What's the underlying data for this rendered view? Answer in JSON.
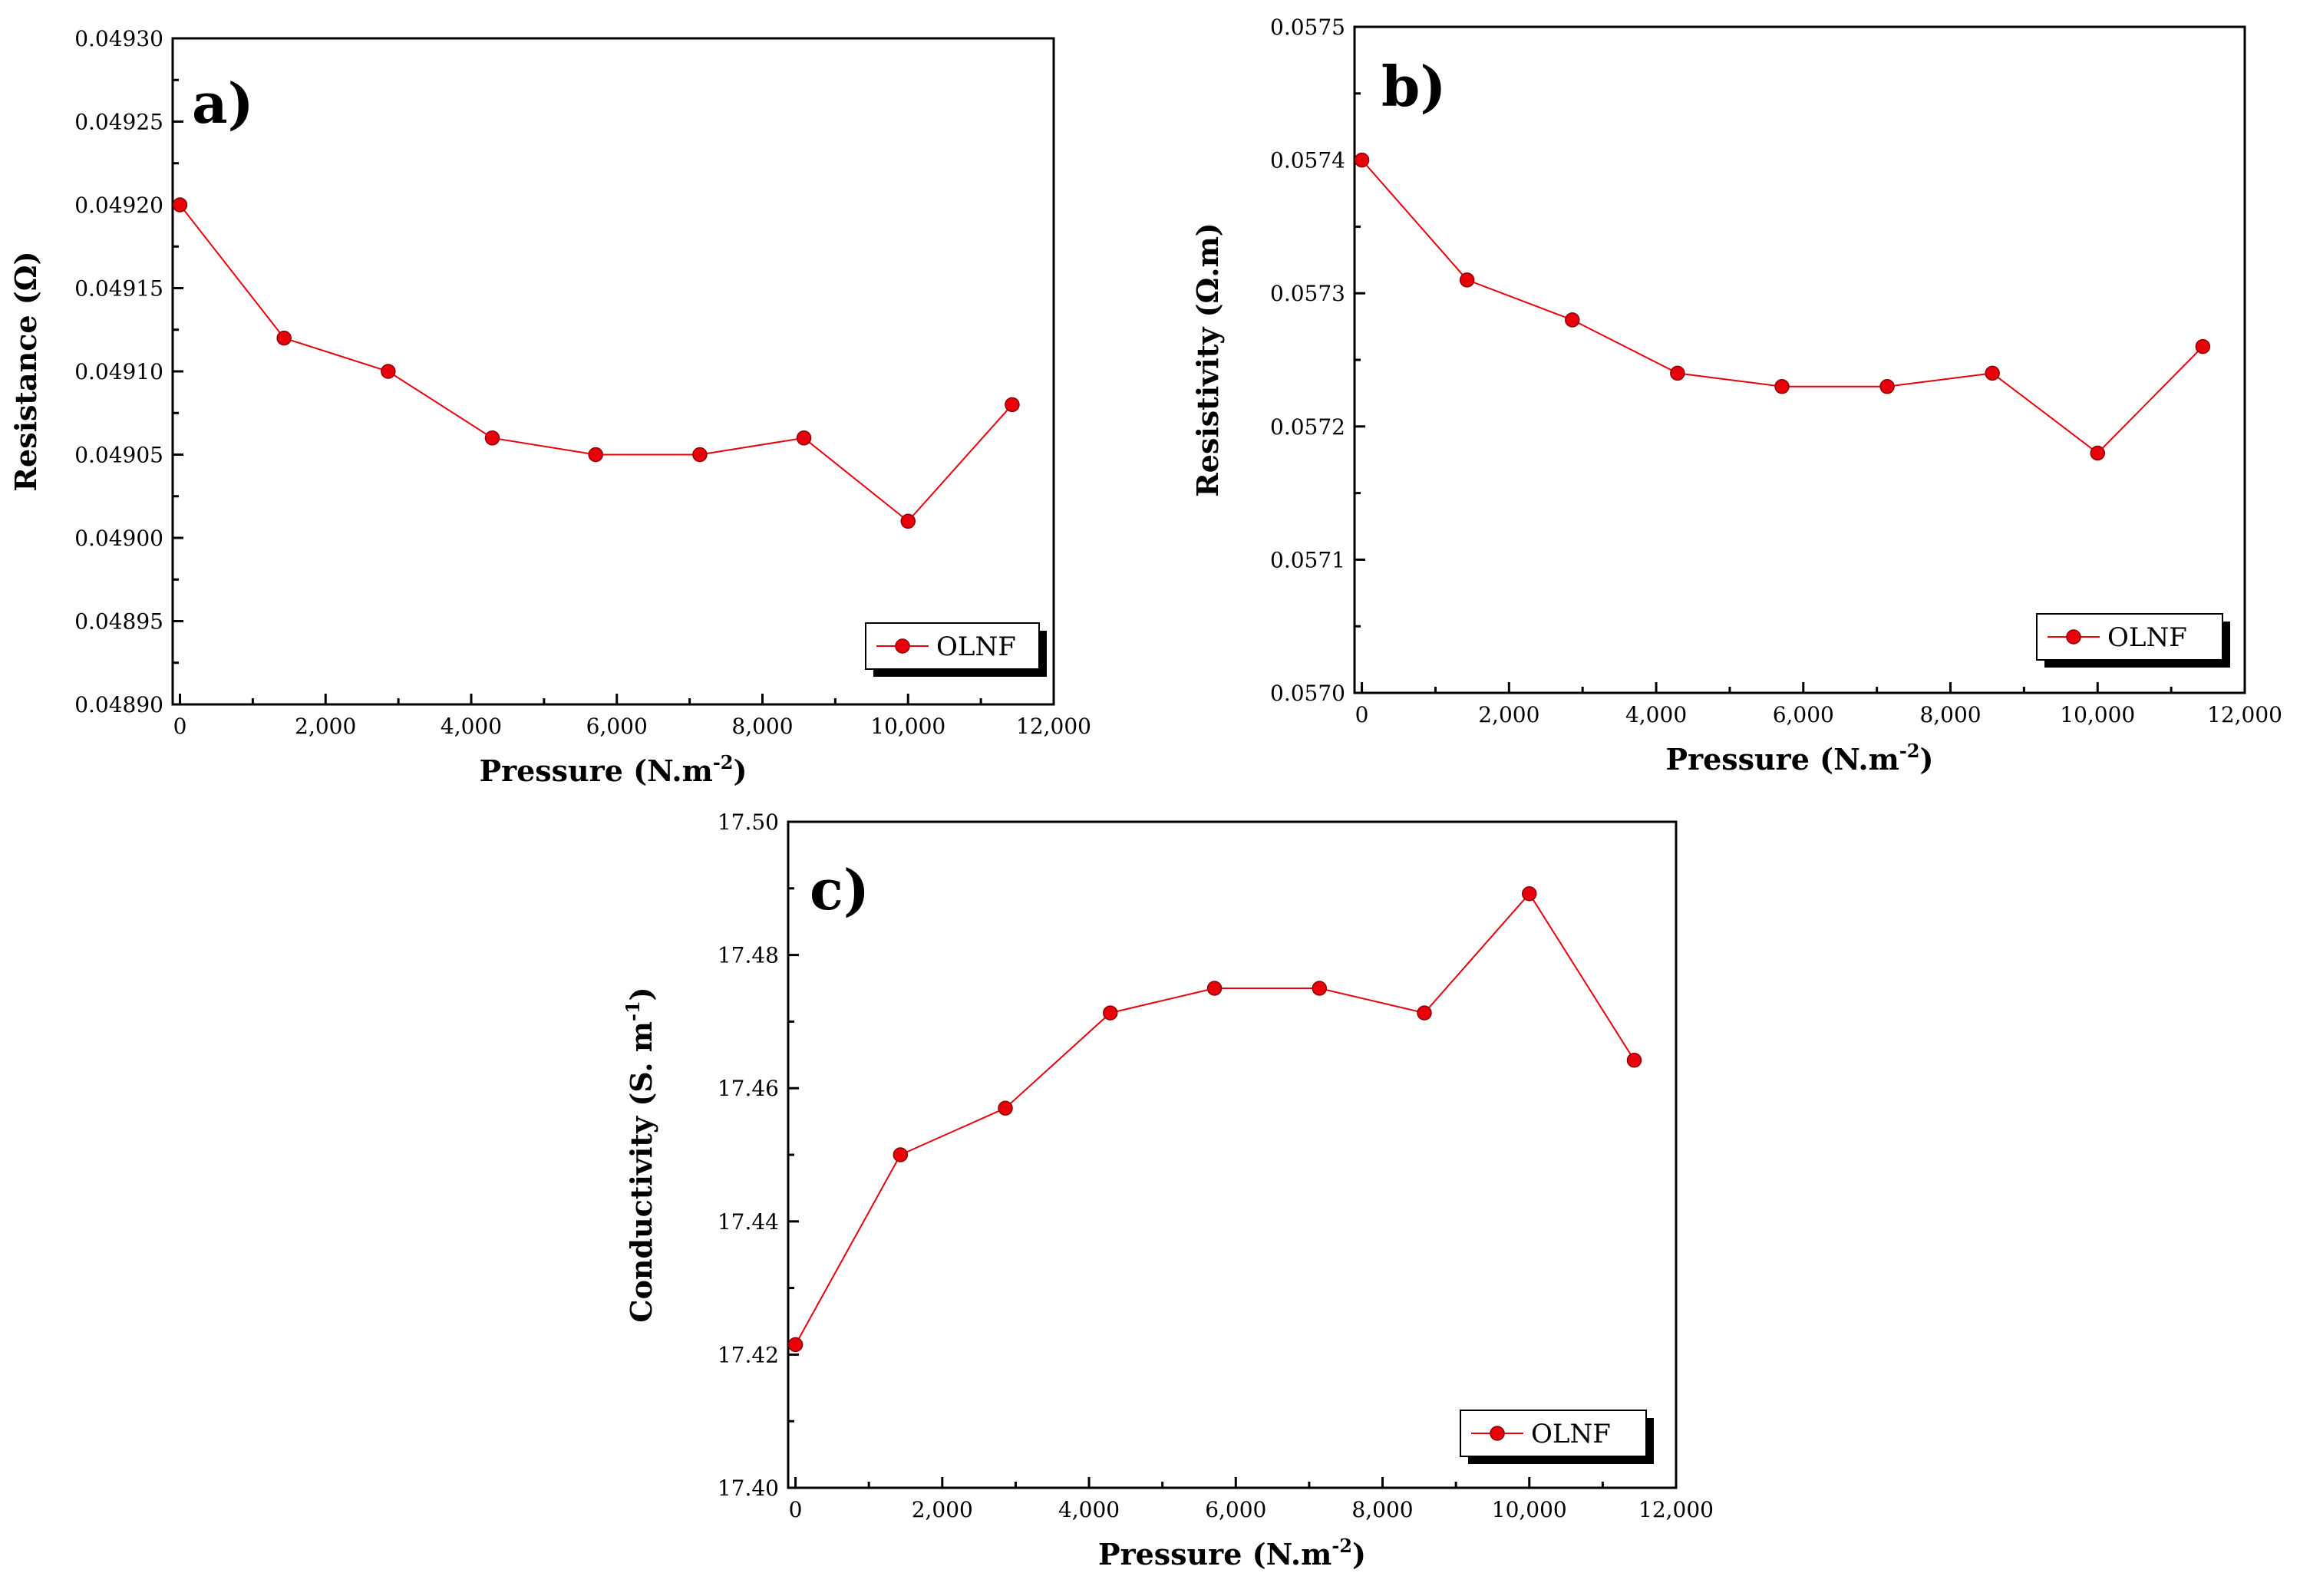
{
  "figure": {
    "legend_label": "OLNF",
    "series_color": "#e8000b"
  },
  "chart_data": [
    {
      "type": "line",
      "panel": "a)",
      "title": "",
      "xlabel": "Pressure (N.m",
      "xlabel_sup": "-2",
      "xlabel_end": ")",
      "ylabel": "Resistance (Ω)",
      "xlim": [
        -100,
        12000
      ],
      "ylim": [
        0.0489,
        0.0493
      ],
      "xticks": [
        0,
        2000,
        4000,
        6000,
        8000,
        10000,
        12000
      ],
      "xtick_labels": [
        "0",
        "2,000",
        "4,000",
        "6,000",
        "8,000",
        "10,000",
        "12,000"
      ],
      "yticks": [
        0.0489,
        0.04895,
        0.049,
        0.04905,
        0.0491,
        0.04915,
        0.0492,
        0.04925,
        0.0493
      ],
      "ytick_labels": [
        "0.04890",
        "0.04895",
        "0.04900",
        "0.04905",
        "0.04910",
        "0.04915",
        "0.04920",
        "0.04925",
        "0.04930"
      ],
      "legend_position": "bottom-right",
      "series": [
        {
          "name": "OLNF",
          "x": [
            0,
            1430,
            2860,
            4290,
            5710,
            7140,
            8570,
            10000,
            11430
          ],
          "y": [
            0.0492,
            0.04912,
            0.0491,
            0.04906,
            0.04905,
            0.04905,
            0.04906,
            0.04901,
            0.04908
          ]
        }
      ]
    },
    {
      "type": "line",
      "panel": "b)",
      "title": "",
      "xlabel": "Pressure (N.m",
      "xlabel_sup": "-2",
      "xlabel_end": ")",
      "ylabel": "Resistivity (Ω.m)",
      "xlim": [
        -100,
        12000
      ],
      "ylim": [
        0.057,
        0.0575
      ],
      "xticks": [
        0,
        2000,
        4000,
        6000,
        8000,
        10000,
        12000
      ],
      "xtick_labels": [
        "0",
        "2,000",
        "4,000",
        "6,000",
        "8,000",
        "10,000",
        "12,000"
      ],
      "yticks": [
        0.057,
        0.0571,
        0.0572,
        0.0573,
        0.0574,
        0.0575
      ],
      "ytick_labels": [
        "0.0570",
        "0.0571",
        "0.0572",
        "0.0573",
        "0.0574",
        "0.0575"
      ],
      "legend_position": "bottom-right",
      "series": [
        {
          "name": "OLNF",
          "x": [
            0,
            1430,
            2860,
            4290,
            5710,
            7140,
            8570,
            10000,
            11430
          ],
          "y": [
            0.0574,
            0.05731,
            0.05728,
            0.05724,
            0.05723,
            0.05723,
            0.05724,
            0.05718,
            0.05726
          ]
        }
      ]
    },
    {
      "type": "line",
      "panel": "c)",
      "title": "",
      "xlabel": "Pressure (N.m",
      "xlabel_sup": "-2",
      "xlabel_end": ")",
      "ylabel": "Conductivity (S. m",
      "ylabel_sup": "-1",
      "ylabel_end": ")",
      "xlim": [
        -100,
        12000
      ],
      "ylim": [
        17.4,
        17.5
      ],
      "xticks": [
        0,
        2000,
        4000,
        6000,
        8000,
        10000,
        12000
      ],
      "xtick_labels": [
        "0",
        "2,000",
        "4,000",
        "6,000",
        "8,000",
        "10,000",
        "12,000"
      ],
      "yticks": [
        17.4,
        17.42,
        17.44,
        17.46,
        17.48,
        17.5
      ],
      "ytick_labels": [
        "17.40",
        "17.42",
        "17.44",
        "17.46",
        "17.48",
        "17.50"
      ],
      "legend_position": "bottom-right",
      "series": [
        {
          "name": "OLNF",
          "x": [
            0,
            1430,
            2860,
            4290,
            5710,
            7140,
            8570,
            10000,
            11430
          ],
          "y": [
            17.4215,
            17.45,
            17.457,
            17.4713,
            17.475,
            17.475,
            17.4713,
            17.4892,
            17.4642
          ]
        }
      ]
    }
  ]
}
